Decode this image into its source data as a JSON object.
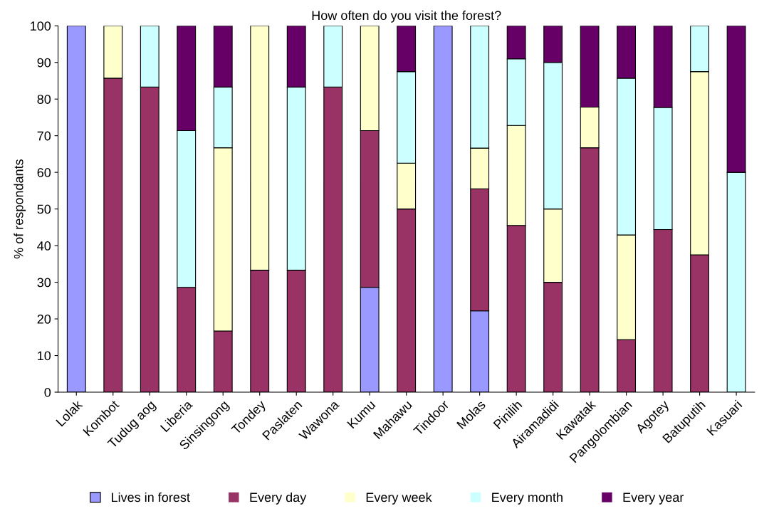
{
  "chart_data": {
    "type": "bar",
    "stacked": true,
    "title": "How often do you visit the forest?",
    "ylabel": "% of respondants",
    "categories": [
      "Lolak",
      "Kombot",
      "Tudug aog",
      "Liberia",
      "Sinsingong",
      "Tondey",
      "Paslaten",
      "Wawona",
      "Kumu",
      "Mahawu",
      "Tindoor",
      "Molas",
      "Pinilih",
      "Airamadidi",
      "Kawatak",
      "Pangolombian",
      "Agotey",
      "Batuputih",
      "Kasuari"
    ],
    "series": [
      {
        "name": "Lives in forest",
        "color": "#9999ff",
        "values": [
          100,
          0,
          0,
          0,
          0,
          0,
          0,
          0,
          28.6,
          0,
          100,
          22.2,
          0,
          0,
          0,
          0,
          0,
          0,
          0
        ]
      },
      {
        "name": "Every day",
        "color": "#993366",
        "values": [
          0,
          85.7,
          83.3,
          28.6,
          16.7,
          33.3,
          33.3,
          83.3,
          42.8,
          50,
          0,
          33.3,
          45.5,
          30,
          66.7,
          14.3,
          44.4,
          37.5,
          0
        ]
      },
      {
        "name": "Every week",
        "color": "#ffffcc",
        "values": [
          0,
          14.3,
          0,
          0,
          50,
          66.7,
          0,
          0,
          28.6,
          12.5,
          0,
          11.1,
          27.3,
          20,
          11.1,
          28.6,
          0,
          50,
          0
        ]
      },
      {
        "name": "Every month",
        "color": "#ccffff",
        "values": [
          0,
          0,
          16.7,
          42.8,
          16.6,
          0,
          50,
          16.7,
          0,
          25,
          0,
          33.4,
          18.2,
          40,
          0,
          42.8,
          33.3,
          12.5,
          60
        ]
      },
      {
        "name": "Every year",
        "color": "#660066",
        "values": [
          0,
          0,
          0,
          28.6,
          16.7,
          0,
          16.7,
          0,
          0,
          12.5,
          0,
          0,
          9.0,
          10,
          22.2,
          14.3,
          22.3,
          0,
          40
        ]
      }
    ],
    "ylim": [
      0,
      100
    ],
    "yticks": [
      0,
      10,
      20,
      30,
      40,
      50,
      60,
      70,
      80,
      90,
      100
    ],
    "grid": false,
    "legend": "bottom"
  }
}
